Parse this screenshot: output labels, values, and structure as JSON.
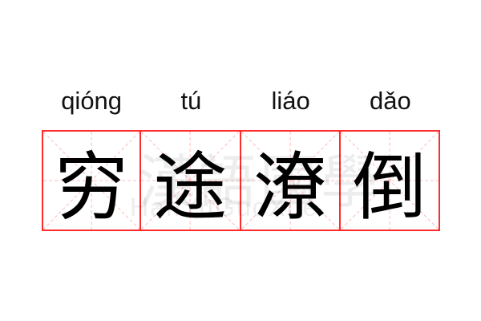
{
  "idiom": {
    "pinyin": [
      "qióng",
      "tú",
      "liáo",
      "dǎo"
    ],
    "characters": [
      "穷",
      "途",
      "潦",
      "倒"
    ]
  },
  "watermark": {
    "chinese": "漢語國學",
    "latin": "HanYuGuoXue"
  },
  "colors": {
    "grid_border": "#ff2a2a",
    "grid_guides": "#ffaaaa",
    "text": "#000000"
  }
}
